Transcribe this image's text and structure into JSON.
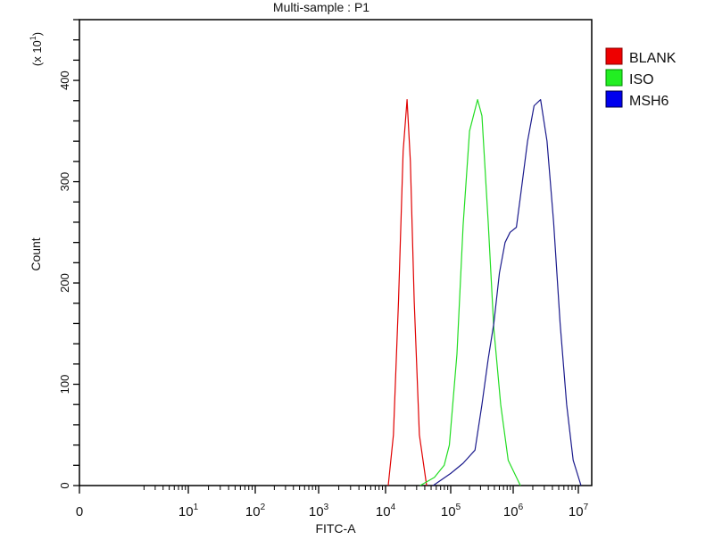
{
  "chart_data": {
    "type": "line",
    "title": "Multi-sample : P1",
    "xlabel": "FITC-A",
    "ylabel": "Count",
    "y_multiplier_label": "(x 10",
    "y_multiplier_exp": "1",
    "x_scale": "biexponential/log",
    "x_ticks": [
      {
        "label": "0",
        "exp": ""
      },
      {
        "label": "10",
        "exp": "1"
      },
      {
        "label": "10",
        "exp": "2"
      },
      {
        "label": "10",
        "exp": "3"
      },
      {
        "label": "10",
        "exp": "4"
      },
      {
        "label": "10",
        "exp": "5"
      },
      {
        "label": "10",
        "exp": "6"
      },
      {
        "label": "10",
        "exp": "7"
      }
    ],
    "y_ticks": [
      "0",
      "100",
      "200",
      "300",
      "400"
    ],
    "ylim": [
      0,
      460
    ],
    "grid": false,
    "legend_position": "right",
    "series": [
      {
        "name": "BLANK",
        "color": "#e00000",
        "x": [
          11000,
          13200,
          15800,
          18600,
          21400,
          24000,
          27500,
          33100,
          42700
        ],
        "y": [
          0,
          50,
          182,
          330,
          381,
          320,
          182,
          50,
          0
        ]
      },
      {
        "name": "ISO",
        "color": "#22dd22",
        "x": [
          33900,
          56200,
          79400,
          95500,
          126000,
          158000,
          200000,
          269000,
          316000,
          398000,
          490000,
          631000,
          832000,
          1290000
        ],
        "y": [
          0,
          8,
          20,
          40,
          130,
          257,
          350,
          381,
          365,
          260,
          155,
          80,
          25,
          0
        ]
      },
      {
        "name": "MSH6",
        "color": "#1a1a8c",
        "x": [
          53700,
          100000,
          158000,
          245000,
          316000,
          398000,
          490000,
          603000,
          741000,
          891000,
          1120000,
          1320000,
          1660000,
          2090000,
          2630000,
          3310000,
          4170000,
          5250000,
          6610000,
          8320000,
          11000000
        ],
        "y": [
          0,
          12,
          22,
          35,
          80,
          125,
          160,
          210,
          240,
          250,
          255,
          290,
          340,
          375,
          381,
          340,
          260,
          160,
          80,
          25,
          0
        ]
      }
    ]
  }
}
